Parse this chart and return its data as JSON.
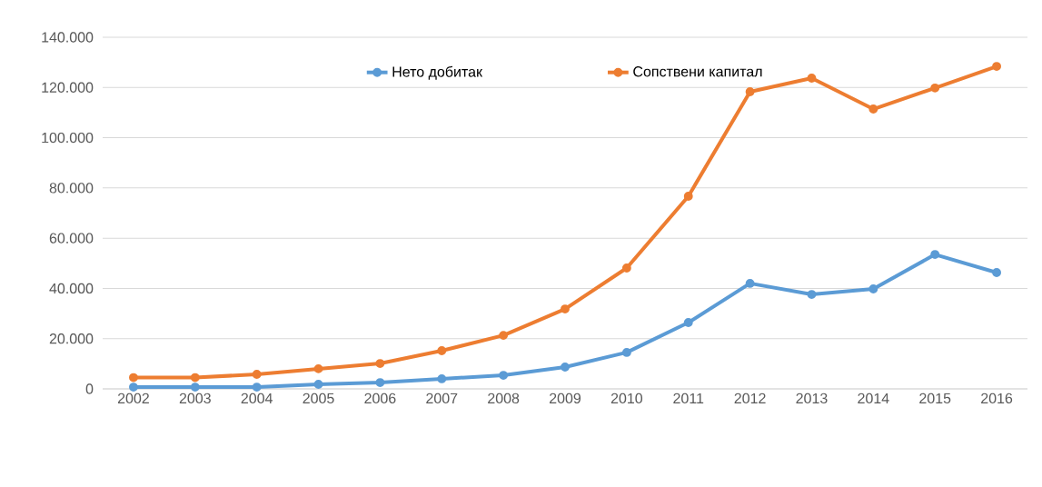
{
  "chart_data": {
    "type": "line",
    "categories": [
      "2002",
      "2003",
      "2004",
      "2005",
      "2006",
      "2007",
      "2008",
      "2009",
      "2010",
      "2011",
      "2012",
      "2013",
      "2014",
      "2015",
      "2016"
    ],
    "series": [
      {
        "name": "Нето добитак",
        "color": "#5b9bd5",
        "values": [
          700,
          700,
          700,
          1800,
          2500,
          4000,
          5400,
          8700,
          14500,
          26400,
          42000,
          37600,
          39800,
          53500,
          46300
        ]
      },
      {
        "name": "Сопствени капитал",
        "color": "#ed7d31",
        "values": [
          4500,
          4500,
          5800,
          8000,
          10100,
          15200,
          21300,
          31800,
          48100,
          76700,
          118300,
          123700,
          111400,
          119800,
          128400
        ]
      }
    ],
    "ylim": [
      0,
      140000
    ],
    "yticks": [
      {
        "value": 0,
        "label": "0"
      },
      {
        "value": 20000,
        "label": "20.000"
      },
      {
        "value": 40000,
        "label": "40.000"
      },
      {
        "value": 60000,
        "label": "60.000"
      },
      {
        "value": 80000,
        "label": "80.000"
      },
      {
        "value": 100000,
        "label": "100.000"
      },
      {
        "value": 120000,
        "label": "120.000"
      },
      {
        "value": 140000,
        "label": "140.000"
      }
    ],
    "grid": "y",
    "legend": "top",
    "marker": "circle",
    "line_style": "solid"
  }
}
